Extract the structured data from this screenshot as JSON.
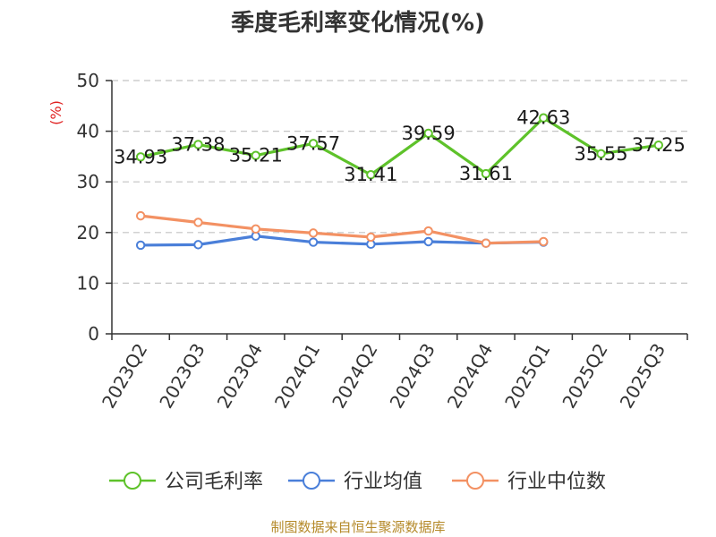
{
  "chart_data": {
    "type": "line",
    "title": "季度毛利率变化情况(%)",
    "unit_label": "(%)",
    "categories": [
      "2023Q2",
      "2023Q3",
      "2023Q4",
      "2024Q1",
      "2024Q2",
      "2024Q3",
      "2024Q4",
      "2025Q1",
      "2025Q2",
      "2025Q3"
    ],
    "ylim": [
      0,
      50
    ],
    "yticks": [
      0,
      10,
      20,
      30,
      40,
      50
    ],
    "grid": true,
    "legend_position": "bottom",
    "series": [
      {
        "name": "公司毛利率",
        "color": "#5ec22a",
        "values": [
          34.93,
          37.38,
          35.21,
          37.57,
          31.41,
          39.59,
          31.61,
          42.63,
          35.55,
          37.25
        ],
        "labels": [
          "34.93",
          "37.38",
          "35.21",
          "37.57",
          "31.41",
          "39.59",
          "31.61",
          "42.63",
          "35.55",
          "37.25"
        ]
      },
      {
        "name": "行业均值",
        "color": "#4a7fd9",
        "values": [
          17.5,
          17.6,
          19.3,
          18.1,
          17.7,
          18.2,
          17.9,
          18.1,
          null,
          null
        ]
      },
      {
        "name": "行业中位数",
        "color": "#f39163",
        "values": [
          23.3,
          22.0,
          20.7,
          19.9,
          19.1,
          20.3,
          17.9,
          18.2,
          null,
          null
        ]
      }
    ]
  },
  "source": {
    "text": "制图数据来自恒生聚源数据库",
    "color": "#b58a2a"
  }
}
